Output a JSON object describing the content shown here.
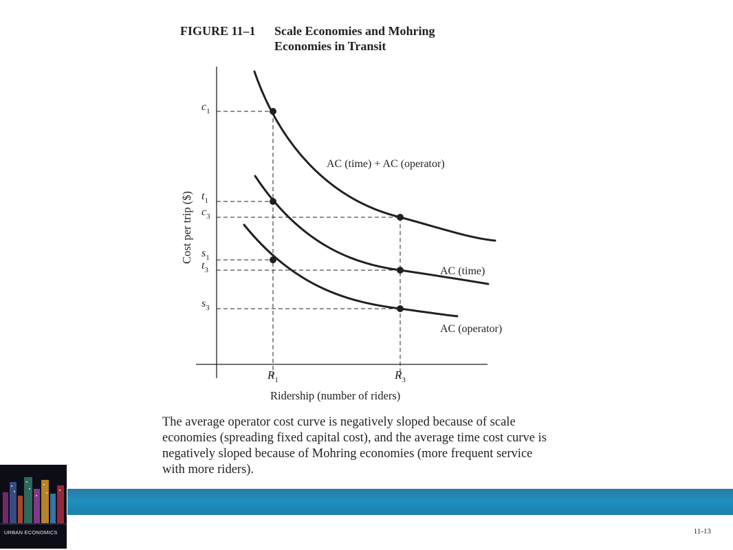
{
  "figure": {
    "number": "FIGURE 11–1",
    "title_line1": "Scale Economies and Mohring",
    "title_line2": "Economies in Transit"
  },
  "diagram": {
    "y_axis_label": "Cost per trip ($)",
    "x_axis_label": "Ridership (number of riders)",
    "x_ticks": [
      {
        "letter": "R",
        "sub": "1"
      },
      {
        "letter": "R",
        "sub": "3"
      }
    ],
    "y_ticks": [
      {
        "letter": "c",
        "sub": "1"
      },
      {
        "letter": "t",
        "sub": "1"
      },
      {
        "letter": "c",
        "sub": "3"
      },
      {
        "letter": "s",
        "sub": "1"
      },
      {
        "letter": "t",
        "sub": "3"
      },
      {
        "letter": "s",
        "sub": "3"
      }
    ],
    "curves": [
      {
        "label": "AC (time) + AC (operator)"
      },
      {
        "label": "AC (time)"
      },
      {
        "label": "AC (operator)"
      }
    ]
  },
  "caption": "The average operator cost curve is negatively sloped because of scale economies (spreading fixed capital cost), and the average time cost curve is negatively sloped because of Mohring economies (more frequent service with more riders).",
  "footer": {
    "book_title": "URBAN ECONOMICS",
    "page_number": "11-13",
    "band_color": "#1f8fbf"
  }
}
